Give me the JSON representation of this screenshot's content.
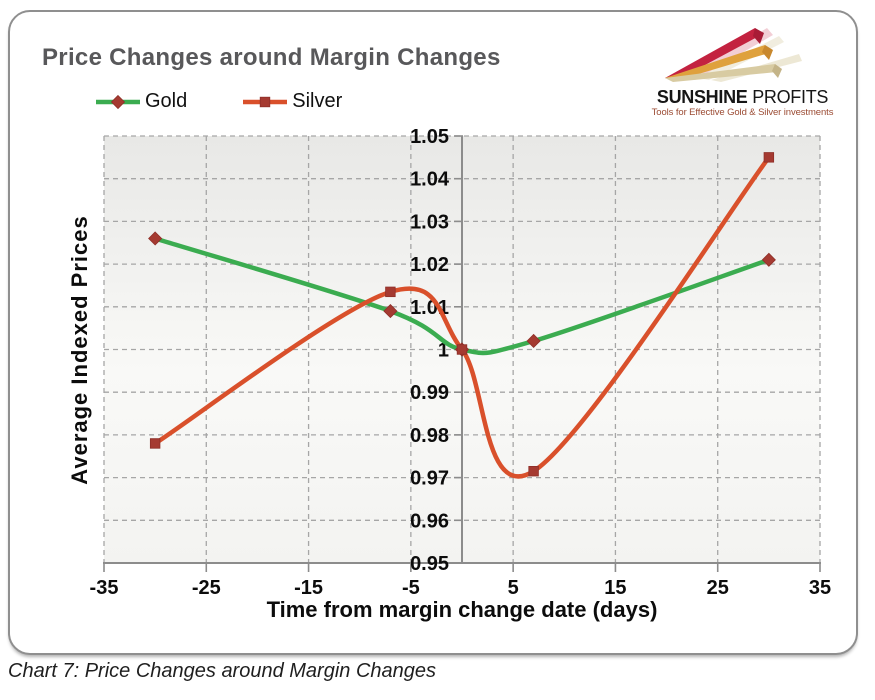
{
  "page": {
    "caption": "Chart 7: Price Changes around Margin Changes"
  },
  "header": {
    "title": "Price Changes around Margin Changes"
  },
  "logo": {
    "brand_bold": "SUNSHINE",
    "brand_regular": " PROFITS",
    "tagline": "Tools for Effective Gold & Silver investments",
    "colors": {
      "ray_red": "#c32240",
      "ray_orange": "#dfa13d",
      "ray_tan": "#d8cba2",
      "text": "#161616",
      "tagline": "#9b4b33"
    }
  },
  "chart_data": {
    "type": "line",
    "title": "Price Changes around Margin Changes",
    "xlabel": "Time from margin change date (days)",
    "ylabel": "Average Indexed Prices",
    "xlim": [
      -35,
      35
    ],
    "ylim": [
      0.95,
      1.05
    ],
    "grid": "dashed, both axes",
    "legend_position": "top-left",
    "plot_bg": "light gray-to-white vertical gradient",
    "x_ticks": [
      {
        "v": -35,
        "label": "-35"
      },
      {
        "v": -25,
        "label": "-25"
      },
      {
        "v": -15,
        "label": "-15"
      },
      {
        "v": -5,
        "label": "-5"
      },
      {
        "v": 5,
        "label": "5"
      },
      {
        "v": 15,
        "label": "15"
      },
      {
        "v": 25,
        "label": "25"
      },
      {
        "v": 35,
        "label": "35"
      }
    ],
    "y_ticks": [
      {
        "v": 1.05,
        "label": "1.05"
      },
      {
        "v": 1.04,
        "label": "1.04"
      },
      {
        "v": 1.03,
        "label": "1.03"
      },
      {
        "v": 1.02,
        "label": "1.02"
      },
      {
        "v": 1.01,
        "label": "1.01"
      },
      {
        "v": 1.0,
        "label": "1"
      },
      {
        "v": 0.99,
        "label": "0.99"
      },
      {
        "v": 0.98,
        "label": "0.98"
      },
      {
        "v": 0.97,
        "label": "0.97"
      },
      {
        "v": 0.96,
        "label": "0.96"
      },
      {
        "v": 0.95,
        "label": "0.95"
      }
    ],
    "series": [
      {
        "name": "Gold",
        "color": "#3bac50",
        "marker": "diamond",
        "marker_color": "#a53a31",
        "x": [
          -30,
          -7,
          0,
          7,
          30
        ],
        "y": [
          1.026,
          1.009,
          1.0,
          1.002,
          1.021
        ]
      },
      {
        "name": "Silver",
        "color": "#d9502b",
        "marker": "square",
        "marker_color": "#a53a31",
        "x": [
          -30,
          -7,
          0,
          7,
          30
        ],
        "y": [
          0.978,
          1.0135,
          1.0,
          0.9715,
          1.045
        ]
      }
    ],
    "axis_color": "#8c8c8c",
    "grid_color": "#a6a6a6"
  }
}
